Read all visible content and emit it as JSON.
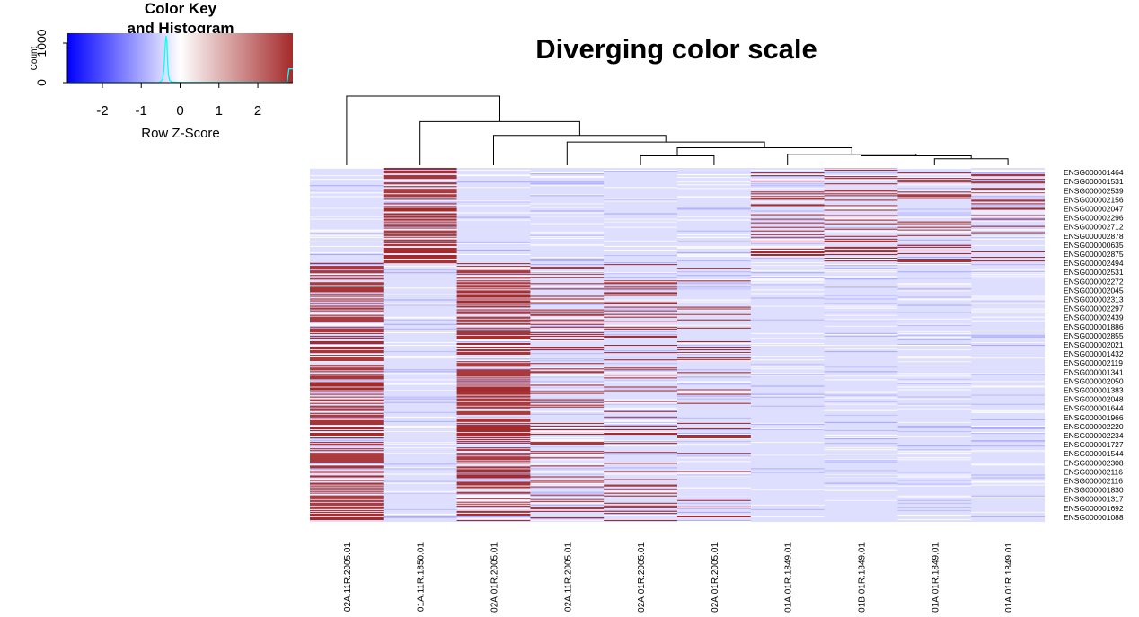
{
  "title": "Diverging color scale",
  "color_key": {
    "title_line1": "Color Key",
    "title_line2": "and Histogram",
    "x_label": "Row Z-Score",
    "y_label": "Count",
    "x_ticks": [
      "-2",
      "-1",
      "0",
      "1",
      "2"
    ],
    "y_ticks": [
      "0",
      "1000"
    ],
    "x_range": [
      -2.9,
      2.9
    ],
    "y_range": [
      0,
      1250
    ],
    "colors": {
      "low": "#0000ff",
      "mid": "#ffffff",
      "high": "#a52a2a",
      "histogram": "#00ffff"
    },
    "histogram": [
      [
        -2.9,
        0
      ],
      [
        -0.55,
        0
      ],
      [
        -0.5,
        30
      ],
      [
        -0.45,
        80
      ],
      [
        -0.42,
        300
      ],
      [
        -0.4,
        600
      ],
      [
        -0.38,
        1000
      ],
      [
        -0.36,
        1180
      ],
      [
        -0.34,
        1050
      ],
      [
        -0.32,
        500
      ],
      [
        -0.3,
        200
      ],
      [
        -0.27,
        60
      ],
      [
        -0.2,
        15
      ],
      [
        0.0,
        5
      ],
      [
        2.0,
        4
      ],
      [
        2.75,
        2
      ],
      [
        2.8,
        350
      ],
      [
        2.85,
        350
      ],
      [
        2.9,
        350
      ]
    ]
  },
  "chart_data": {
    "type": "heatmap",
    "title": "Diverging color scale",
    "columns": [
      "02A.11R.2005.01",
      "01A.11R.1850.01",
      "02A.01R.2005.01",
      "02A.11R.2005.01",
      "02A.01R.2005.01",
      "02A.01R.2005.01",
      "01A.01R.1849.01",
      "01B.01R.1849.01",
      "01A.01R.1849.01",
      "01A.01R.1849.01"
    ],
    "row_labels": [
      "ENSG000001464",
      "ENSG000001531",
      "ENSG000002539",
      "ENSG000002156",
      "ENSG000002047",
      "ENSG000002296",
      "ENSG000002712",
      "ENSG000002878",
      "ENSG000000635",
      "ENSG000002875",
      "ENSG000002494",
      "ENSG000002531",
      "ENSG000002272",
      "ENSG000002045",
      "ENSG000002313",
      "ENSG000002297",
      "ENSG000002439",
      "ENSG000001886",
      "ENSG000002855",
      "ENSG000002021",
      "ENSG000001432",
      "ENSG000002119",
      "ENSG000001341",
      "ENSG000002050",
      "ENSG000001383",
      "ENSG000002048",
      "ENSG000001644",
      "ENSG000001966",
      "ENSG000002220",
      "ENSG000002234",
      "ENSG000001727",
      "ENSG000001544",
      "ENSG000002308",
      "ENSG000002116",
      "ENSG000002116",
      "ENSG000001830",
      "ENSG000001317",
      "ENSG000001692",
      "ENSG000001088"
    ],
    "n_rows": 390,
    "blocks": [
      {
        "rows": [
          0,
          105
        ],
        "high_columns": [
          1
        ],
        "density": 0.55
      },
      {
        "rows": [
          0,
          105
        ],
        "high_columns": [
          6,
          7,
          8,
          9
        ],
        "density": 0.2
      },
      {
        "rows": [
          105,
          390
        ],
        "high_columns": [
          0,
          2
        ],
        "density": 0.55
      },
      {
        "rows": [
          105,
          390
        ],
        "high_columns": [
          3,
          4
        ],
        "density": 0.18
      },
      {
        "rows": [
          105,
          390
        ],
        "high_columns": [
          5
        ],
        "density": 0.08
      }
    ],
    "color_scale": {
      "low": "#0000ff",
      "mid": "#ffffff",
      "high": "#a52a2a",
      "z_range": [
        -2.9,
        2.9
      ]
    },
    "dendrogram": {
      "merges": [
        {
          "left": 8,
          "right": 9,
          "height": 0.9
        },
        {
          "left": 7,
          "right": 10,
          "height": 1.3
        },
        {
          "left": 6,
          "right": 11,
          "height": 1.5
        },
        {
          "left": 4,
          "right": 5,
          "height": 1.3
        },
        {
          "left": 13,
          "right": 12,
          "height": 2.4
        },
        {
          "left": 3,
          "right": 14,
          "height": 3.2
        },
        {
          "left": 2,
          "right": 15,
          "height": 4.1
        },
        {
          "left": 1,
          "right": 16,
          "height": 6.0
        },
        {
          "left": 0,
          "right": 17,
          "height": 9.5
        }
      ],
      "max_height": 9.5
    }
  }
}
